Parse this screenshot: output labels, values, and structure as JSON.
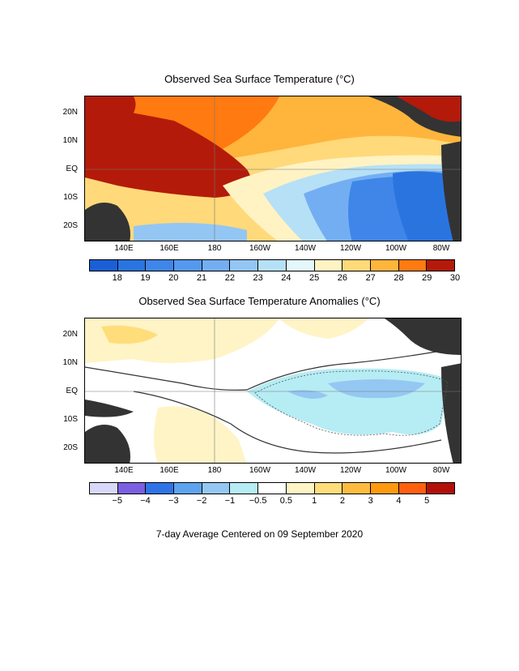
{
  "top_panel": {
    "title": "Observed Sea Surface Temperature (°C)",
    "lat_labels": [
      "20N",
      "10N",
      "EQ",
      "10S",
      "20S"
    ],
    "lon_labels": [
      "140E",
      "160E",
      "180",
      "160W",
      "140W",
      "120W",
      "100W",
      "80W"
    ],
    "colorbar": {
      "colors": [
        "#1a5fd6",
        "#2a74e0",
        "#3f86e8",
        "#5599ee",
        "#74aef2",
        "#94c6f4",
        "#b6e0f6",
        "#e4f7fa",
        "#fff3c4",
        "#ffd97a",
        "#ffb43c",
        "#ff7a10",
        "#b31a0a"
      ],
      "labels": [
        "18",
        "19",
        "20",
        "21",
        "22",
        "23",
        "24",
        "25",
        "26",
        "27",
        "28",
        "29",
        "30"
      ]
    }
  },
  "bottom_panel": {
    "title": "Observed Sea Surface Temperature Anomalies (°C)",
    "lat_labels": [
      "20N",
      "10N",
      "EQ",
      "10S",
      "20S"
    ],
    "lon_labels": [
      "140E",
      "160E",
      "180",
      "160W",
      "140W",
      "120W",
      "100W",
      "80W"
    ],
    "colorbar": {
      "colors": [
        "#d8d8f8",
        "#7a5fe0",
        "#2f74e6",
        "#5ea3ef",
        "#94c8f2",
        "#b6ecf4",
        "#ffffff",
        "#fff4c6",
        "#ffdd7a",
        "#ffbb40",
        "#ff9a10",
        "#ff6010",
        "#b30f0a"
      ],
      "labels": [
        "−5",
        "−4",
        "−3",
        "−2",
        "−1",
        "−0.5",
        "0.5",
        "1",
        "2",
        "3",
        "4",
        "5"
      ]
    }
  },
  "caption": "7-day Average Centered on 09 September 2020"
}
